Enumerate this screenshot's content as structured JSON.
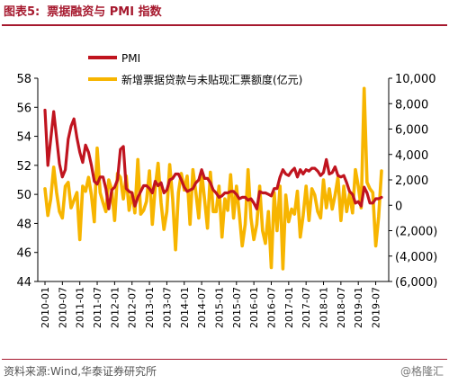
{
  "figure": {
    "label": "图表5:",
    "title": "票据融资与 PMI 指数",
    "source": "资料来源:Wind,华泰证券研究所",
    "watermark": "@格隆汇"
  },
  "colors": {
    "pmi": "#c0141f",
    "bills": "#f7b500",
    "title": "#a6192e"
  },
  "chart_data": {
    "type": "line",
    "title": "",
    "legend_placement": "top",
    "grid": false,
    "x_tick_labels": [
      "2010-01",
      "2010-07",
      "2011-01",
      "2011-07",
      "2012-01",
      "2012-07",
      "2013-01",
      "2013-07",
      "2014-01",
      "2014-07",
      "2015-01",
      "2015-07",
      "2016-01",
      "2016-07",
      "2017-01",
      "2017-07",
      "2018-01",
      "2018-07",
      "2019-01",
      "2019-07"
    ],
    "left_axis": {
      "ylim": [
        44,
        58
      ],
      "ticks": [
        "44",
        "46",
        "48",
        "50",
        "52",
        "54",
        "56",
        "58"
      ]
    },
    "right_axis": {
      "ylim": [
        -6000,
        10000
      ],
      "ticks": [
        "(6,000)",
        "(4,000)",
        "(2,000)",
        "0",
        "2,000",
        "4,000",
        "6,000",
        "8,000",
        "10,000"
      ]
    },
    "series": [
      {
        "name": "PMI",
        "axis": "left",
        "start": "2010-01",
        "frequency": "monthly",
        "values": [
          55.8,
          52.0,
          53.8,
          55.7,
          53.9,
          52.1,
          51.2,
          51.7,
          53.8,
          54.7,
          55.2,
          53.9,
          52.9,
          52.2,
          53.4,
          52.9,
          52.0,
          50.9,
          50.7,
          51.2,
          51.2,
          50.4,
          49.0,
          50.3,
          50.5,
          51.0,
          53.1,
          53.3,
          50.4,
          50.2,
          50.1,
          49.2,
          49.8,
          50.2,
          50.6,
          50.6,
          50.4,
          50.1,
          50.9,
          50.6,
          50.8,
          50.1,
          50.3,
          51.0,
          51.1,
          51.4,
          51.4,
          51.0,
          50.5,
          50.2,
          50.3,
          50.4,
          50.8,
          51.0,
          51.7,
          51.1,
          51.1,
          50.8,
          50.3,
          50.1,
          49.8,
          49.9,
          50.1,
          50.1,
          50.2,
          50.2,
          50.0,
          49.7,
          49.8,
          49.8,
          49.6,
          49.7,
          49.4,
          49.0,
          50.2,
          50.1,
          50.1,
          50.0,
          49.9,
          50.4,
          50.4,
          51.2,
          51.7,
          51.4,
          51.3,
          51.6,
          51.8,
          51.2,
          51.7,
          51.4,
          51.7,
          51.6,
          51.8,
          51.8,
          51.6,
          51.3,
          51.5,
          52.4,
          51.4,
          51.5,
          51.9,
          51.3,
          51.2,
          51.3,
          50.8,
          50.2,
          50.0,
          49.4,
          49.5,
          49.2,
          50.5,
          50.1,
          49.4,
          49.4,
          49.7,
          49.7,
          49.8
        ]
      },
      {
        "name": "新增票据贷款与未贴现汇票额度(亿元)",
        "axis": "right",
        "start": "2010-01",
        "frequency": "monthly",
        "values": [
          1300,
          -800,
          500,
          3000,
          1000,
          -500,
          -1000,
          1500,
          1800,
          -200,
          400,
          1000,
          -2700,
          1500,
          1100,
          2200,
          800,
          -1300,
          4500,
          1000,
          200,
          -500,
          2000,
          1200,
          -1200,
          2500,
          2200,
          500,
          2300,
          -400,
          1000,
          -600,
          3600,
          -700,
          -400,
          300,
          2700,
          -1500,
          1400,
          3300,
          200,
          -1900,
          -500,
          3200,
          500,
          -3500,
          1000,
          2500,
          1200,
          2300,
          -1500,
          2800,
          1000,
          -1000,
          2600,
          500,
          -1800,
          2600,
          -500,
          -500,
          1500,
          -2500,
          500,
          -400,
          2400,
          -1000,
          1500,
          -700,
          -3200,
          -1500,
          2800,
          -1000,
          -2700,
          -1500,
          1500,
          -2000,
          -3000,
          -500,
          -4900,
          1000,
          -2000,
          1500,
          -5000,
          800,
          -1300,
          -300,
          -700,
          1100,
          -2500,
          -800,
          1500,
          -1200,
          1300,
          800,
          -500,
          -1000,
          2000,
          -200,
          1300,
          -300,
          800,
          2200,
          -1200,
          1500,
          -500,
          900,
          -600,
          2800,
          1500,
          -200,
          9200,
          1800,
          1300,
          1000,
          -3200,
          -900,
          2700
        ]
      }
    ]
  }
}
